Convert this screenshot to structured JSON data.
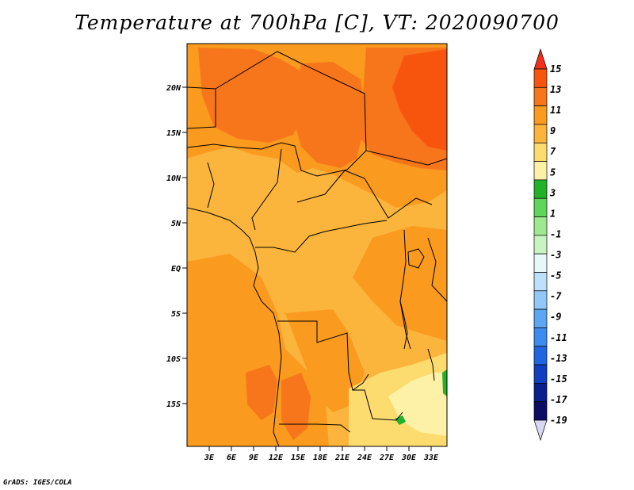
{
  "title": "Temperature at 700hPa [C], VT: 2020090700",
  "credit": "GrADS: IGES/COLA",
  "map": {
    "lat_labels": [
      "20N",
      "15N",
      "10N",
      "5N",
      "EQ",
      "5S",
      "10S",
      "15S"
    ],
    "lon_labels": [
      "3E",
      "6E",
      "9E",
      "12E",
      "15E",
      "18E",
      "21E",
      "24E",
      "27E",
      "30E",
      "33E"
    ]
  },
  "colorbar": {
    "labels": [
      "15",
      "13",
      "11",
      "9",
      "7",
      "5",
      "3",
      "1",
      "-1",
      "-3",
      "-5",
      "-7",
      "-9",
      "-11",
      "-13",
      "-15",
      "-17",
      "-19"
    ],
    "colors": [
      "#f0301e",
      "#f7550e",
      "#f8761b",
      "#fa9a1e",
      "#fbb43c",
      "#fcdc6e",
      "#fdf1a8",
      "#22b22a",
      "#5ed65a",
      "#9ee890",
      "#c9f3c0",
      "#e6f8f8",
      "#bde0fb",
      "#91c8f8",
      "#5da6f1",
      "#3c8cf0",
      "#2066e0",
      "#1040c0",
      "#0a1f8c",
      "#0d0d63",
      "#d8d8f5"
    ]
  }
}
